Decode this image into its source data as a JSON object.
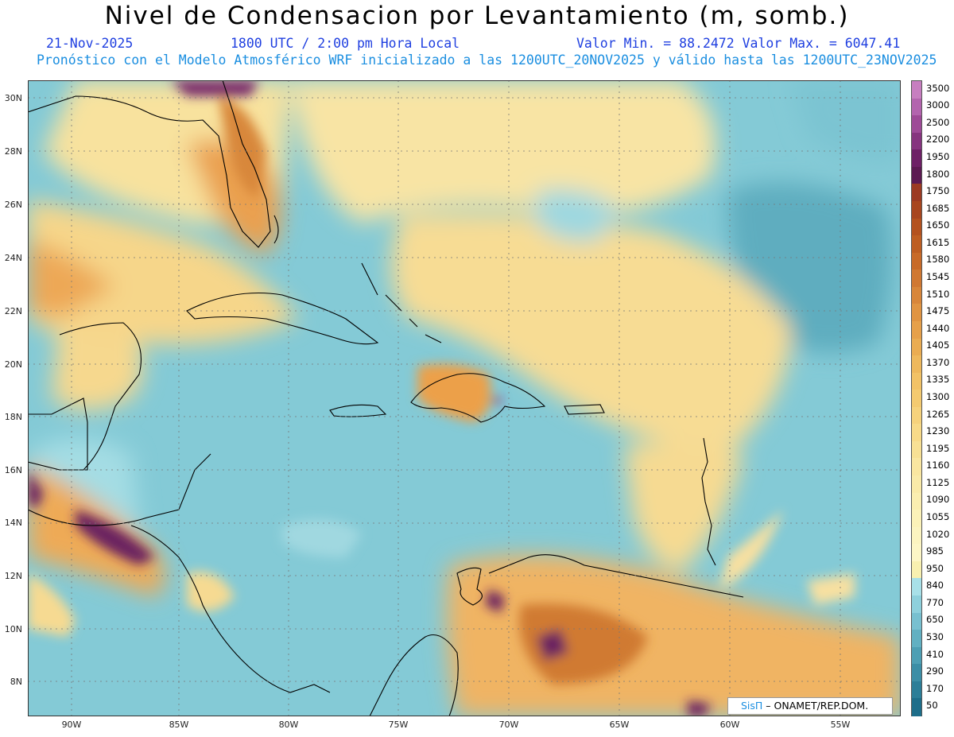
{
  "header": {
    "title": "Nivel de Condensacion por Levantamiento (m, somb.)",
    "date": "21-Nov-2025",
    "time": "1800 UTC / 2:00 pm Hora Local",
    "minmax": "Valor Min. = 88.2472  Valor Max. = 6047.41",
    "model_note": "Pronóstico con el Modelo Atmosférico WRF inicializado a las 1200UTC_20NOV2025 y válido hasta las  1200UTC_23NOV2025"
  },
  "axes": {
    "lat_labels": [
      "30N",
      "28N",
      "26N",
      "24N",
      "22N",
      "20N",
      "18N",
      "16N",
      "14N",
      "12N",
      "10N",
      "8N"
    ],
    "lon_labels": [
      "90W",
      "85W",
      "80W",
      "75W",
      "70W",
      "65W",
      "60W",
      "55W"
    ]
  },
  "legend": {
    "levels": [
      "3500",
      "3000",
      "2500",
      "2200",
      "1950",
      "1800",
      "1750",
      "1685",
      "1650",
      "1615",
      "1580",
      "1545",
      "1510",
      "1475",
      "1440",
      "1405",
      "1370",
      "1335",
      "1300",
      "1265",
      "1230",
      "1195",
      "1160",
      "1125",
      "1090",
      "1055",
      "1020",
      "985",
      "950",
      "840",
      "770",
      "650",
      "530",
      "410",
      "290",
      "170",
      "50"
    ],
    "colors": [
      "#c77ec0",
      "#b364ae",
      "#9e4a97",
      "#86347f",
      "#6e2066",
      "#5c1a52",
      "#9c3a22",
      "#a8461f",
      "#b4521f",
      "#be5e22",
      "#c86a28",
      "#d07832",
      "#d8863a",
      "#e09442",
      "#e6a04a",
      "#eaac52",
      "#eeb85c",
      "#f2c266",
      "#f4ca70",
      "#f6d27c",
      "#f8da88",
      "#f8e094",
      "#fae6a0",
      "#faeaa8",
      "#fbeeb0",
      "#fcf2b8",
      "#fcf4c0",
      "#fdf6c6",
      "#f8f0b0",
      "#a8e0e8",
      "#8ed0dc",
      "#78c0d0",
      "#62b0c2",
      "#4e9fb4",
      "#3c8ea6",
      "#2c7e98",
      "#1e6e8a"
    ]
  },
  "credit": {
    "brand": "SisΠ",
    "text": " – ONAMET/REP.DOM."
  }
}
